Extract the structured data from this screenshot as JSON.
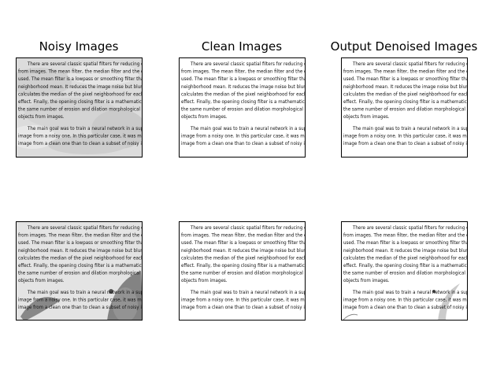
{
  "figure": {
    "titles": {
      "noisy": "Noisy Images",
      "clean": "Clean Images",
      "output": "Output Denoised Images"
    },
    "document_text": {
      "paragraph_1": [
        "There are several classic spatial filters for reducing or elimi",
        "from images. The mean filter, the median filter and the closing o",
        "used. The mean filter is a lowpass or smoothing filter that replac",
        "neighborhood mean. It reduces the image noise but blurs the ima",
        "calculates the median of the pixel neighborhood for each pixel, th",
        "effect. Finally, the opening closing filter is a mathematical morph",
        "the same number of erosion and dilation morphological operations",
        "objects from images."
      ],
      "paragraph_2": [
        "The main goal was to train a neural network in a supervised",
        "image from a noisy one. In this particular case, it was much easier",
        "image from a clean one than to clean a subset of noisy images."
      ]
    },
    "rows": [
      {
        "noisy": {
          "noise_style": "light-gray-crumple"
        },
        "clean": {
          "noise_style": "none"
        },
        "output": {
          "noise_style": "minimal"
        }
      },
      {
        "noisy": {
          "noise_style": "coffee-stain"
        },
        "clean": {
          "noise_style": "none"
        },
        "output": {
          "noise_style": "residual-stain"
        }
      }
    ],
    "colors": {
      "text": "#111111",
      "clean_background": "#ffffff",
      "noisy_background": "#dcdcdc",
      "stain": "#6a6a6a"
    }
  }
}
